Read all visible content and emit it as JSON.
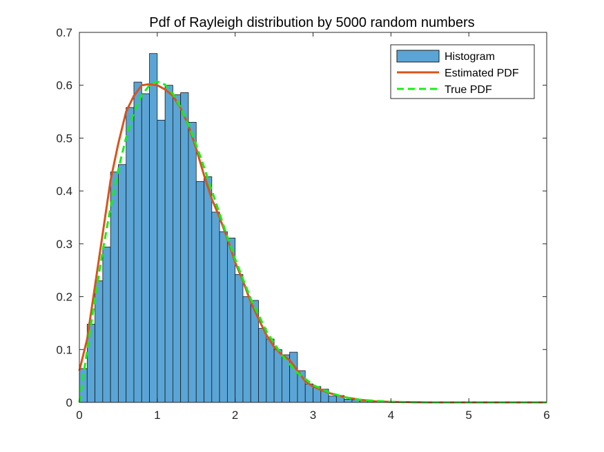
{
  "chart_data": {
    "type": "bar",
    "title": "Pdf of Rayleigh distribution by 5000 random numbers",
    "xlabel": "",
    "ylabel": "",
    "xlim": [
      0,
      6
    ],
    "ylim": [
      0,
      0.7
    ],
    "xticks": [
      0,
      1,
      2,
      3,
      4,
      5,
      6
    ],
    "yticks": [
      0,
      0.1,
      0.2,
      0.3,
      0.4,
      0.5,
      0.6,
      0.7
    ],
    "xtick_labels": [
      "0",
      "1",
      "2",
      "3",
      "4",
      "5",
      "6"
    ],
    "ytick_labels": [
      "0",
      "0.1",
      "0.2",
      "0.3",
      "0.4",
      "0.5",
      "0.6",
      "0.7"
    ],
    "grid": false,
    "legend_position": "top-right",
    "colors": {
      "histogram_fill": "#5aa5d6",
      "histogram_edge": "#1a1a1a",
      "estimated_pdf": "#d95319",
      "true_pdf": "#14f014",
      "axes": "#262626"
    },
    "histogram": {
      "name": "Histogram",
      "bin_start": 0.0,
      "bin_width": 0.1,
      "values": [
        0.064,
        0.148,
        0.23,
        0.294,
        0.436,
        0.45,
        0.558,
        0.606,
        0.584,
        0.66,
        0.534,
        0.6,
        0.582,
        0.586,
        0.53,
        0.418,
        0.427,
        0.36,
        0.323,
        0.311,
        0.242,
        0.2,
        0.193,
        0.14,
        0.12,
        0.1,
        0.09,
        0.095,
        0.06,
        0.035,
        0.03,
        0.025,
        0.012,
        0.013,
        0.006,
        0.005,
        0.003,
        0.002,
        0.001
      ]
    },
    "series": [
      {
        "name": "Estimated PDF",
        "x": [
          0.0,
          0.1,
          0.2,
          0.3,
          0.4,
          0.5,
          0.6,
          0.7,
          0.8,
          0.9,
          1.0,
          1.1,
          1.2,
          1.3,
          1.4,
          1.5,
          1.6,
          1.7,
          1.8,
          1.9,
          2.0,
          2.1,
          2.2,
          2.3,
          2.4,
          2.5,
          2.6,
          2.7,
          2.8,
          2.9,
          3.0,
          3.2,
          3.4,
          3.6,
          3.8,
          4.0,
          4.5,
          5.0,
          6.0
        ],
        "y": [
          0.06,
          0.12,
          0.22,
          0.32,
          0.42,
          0.49,
          0.55,
          0.58,
          0.6,
          0.602,
          0.6,
          0.592,
          0.58,
          0.557,
          0.524,
          0.48,
          0.43,
          0.385,
          0.35,
          0.31,
          0.265,
          0.23,
          0.19,
          0.158,
          0.128,
          0.105,
          0.09,
          0.08,
          0.06,
          0.04,
          0.03,
          0.018,
          0.01,
          0.005,
          0.002,
          0.001,
          0.0,
          0.0,
          0.0
        ]
      },
      {
        "name": "True PDF",
        "x": [
          0.0,
          0.1,
          0.2,
          0.3,
          0.4,
          0.5,
          0.6,
          0.7,
          0.8,
          0.9,
          1.0,
          1.1,
          1.2,
          1.3,
          1.4,
          1.5,
          1.6,
          1.7,
          1.8,
          1.9,
          2.0,
          2.2,
          2.4,
          2.6,
          2.8,
          3.0,
          3.2,
          3.4,
          3.6,
          3.8,
          4.0,
          4.5,
          5.0,
          6.0
        ],
        "y": [
          0.0,
          0.099,
          0.196,
          0.287,
          0.369,
          0.441,
          0.501,
          0.548,
          0.581,
          0.6,
          0.607,
          0.601,
          0.584,
          0.558,
          0.525,
          0.487,
          0.445,
          0.401,
          0.357,
          0.313,
          0.271,
          0.196,
          0.135,
          0.089,
          0.056,
          0.033,
          0.019,
          0.01,
          0.005,
          0.003,
          0.001,
          0.0,
          0.0,
          0.0
        ]
      }
    ]
  }
}
